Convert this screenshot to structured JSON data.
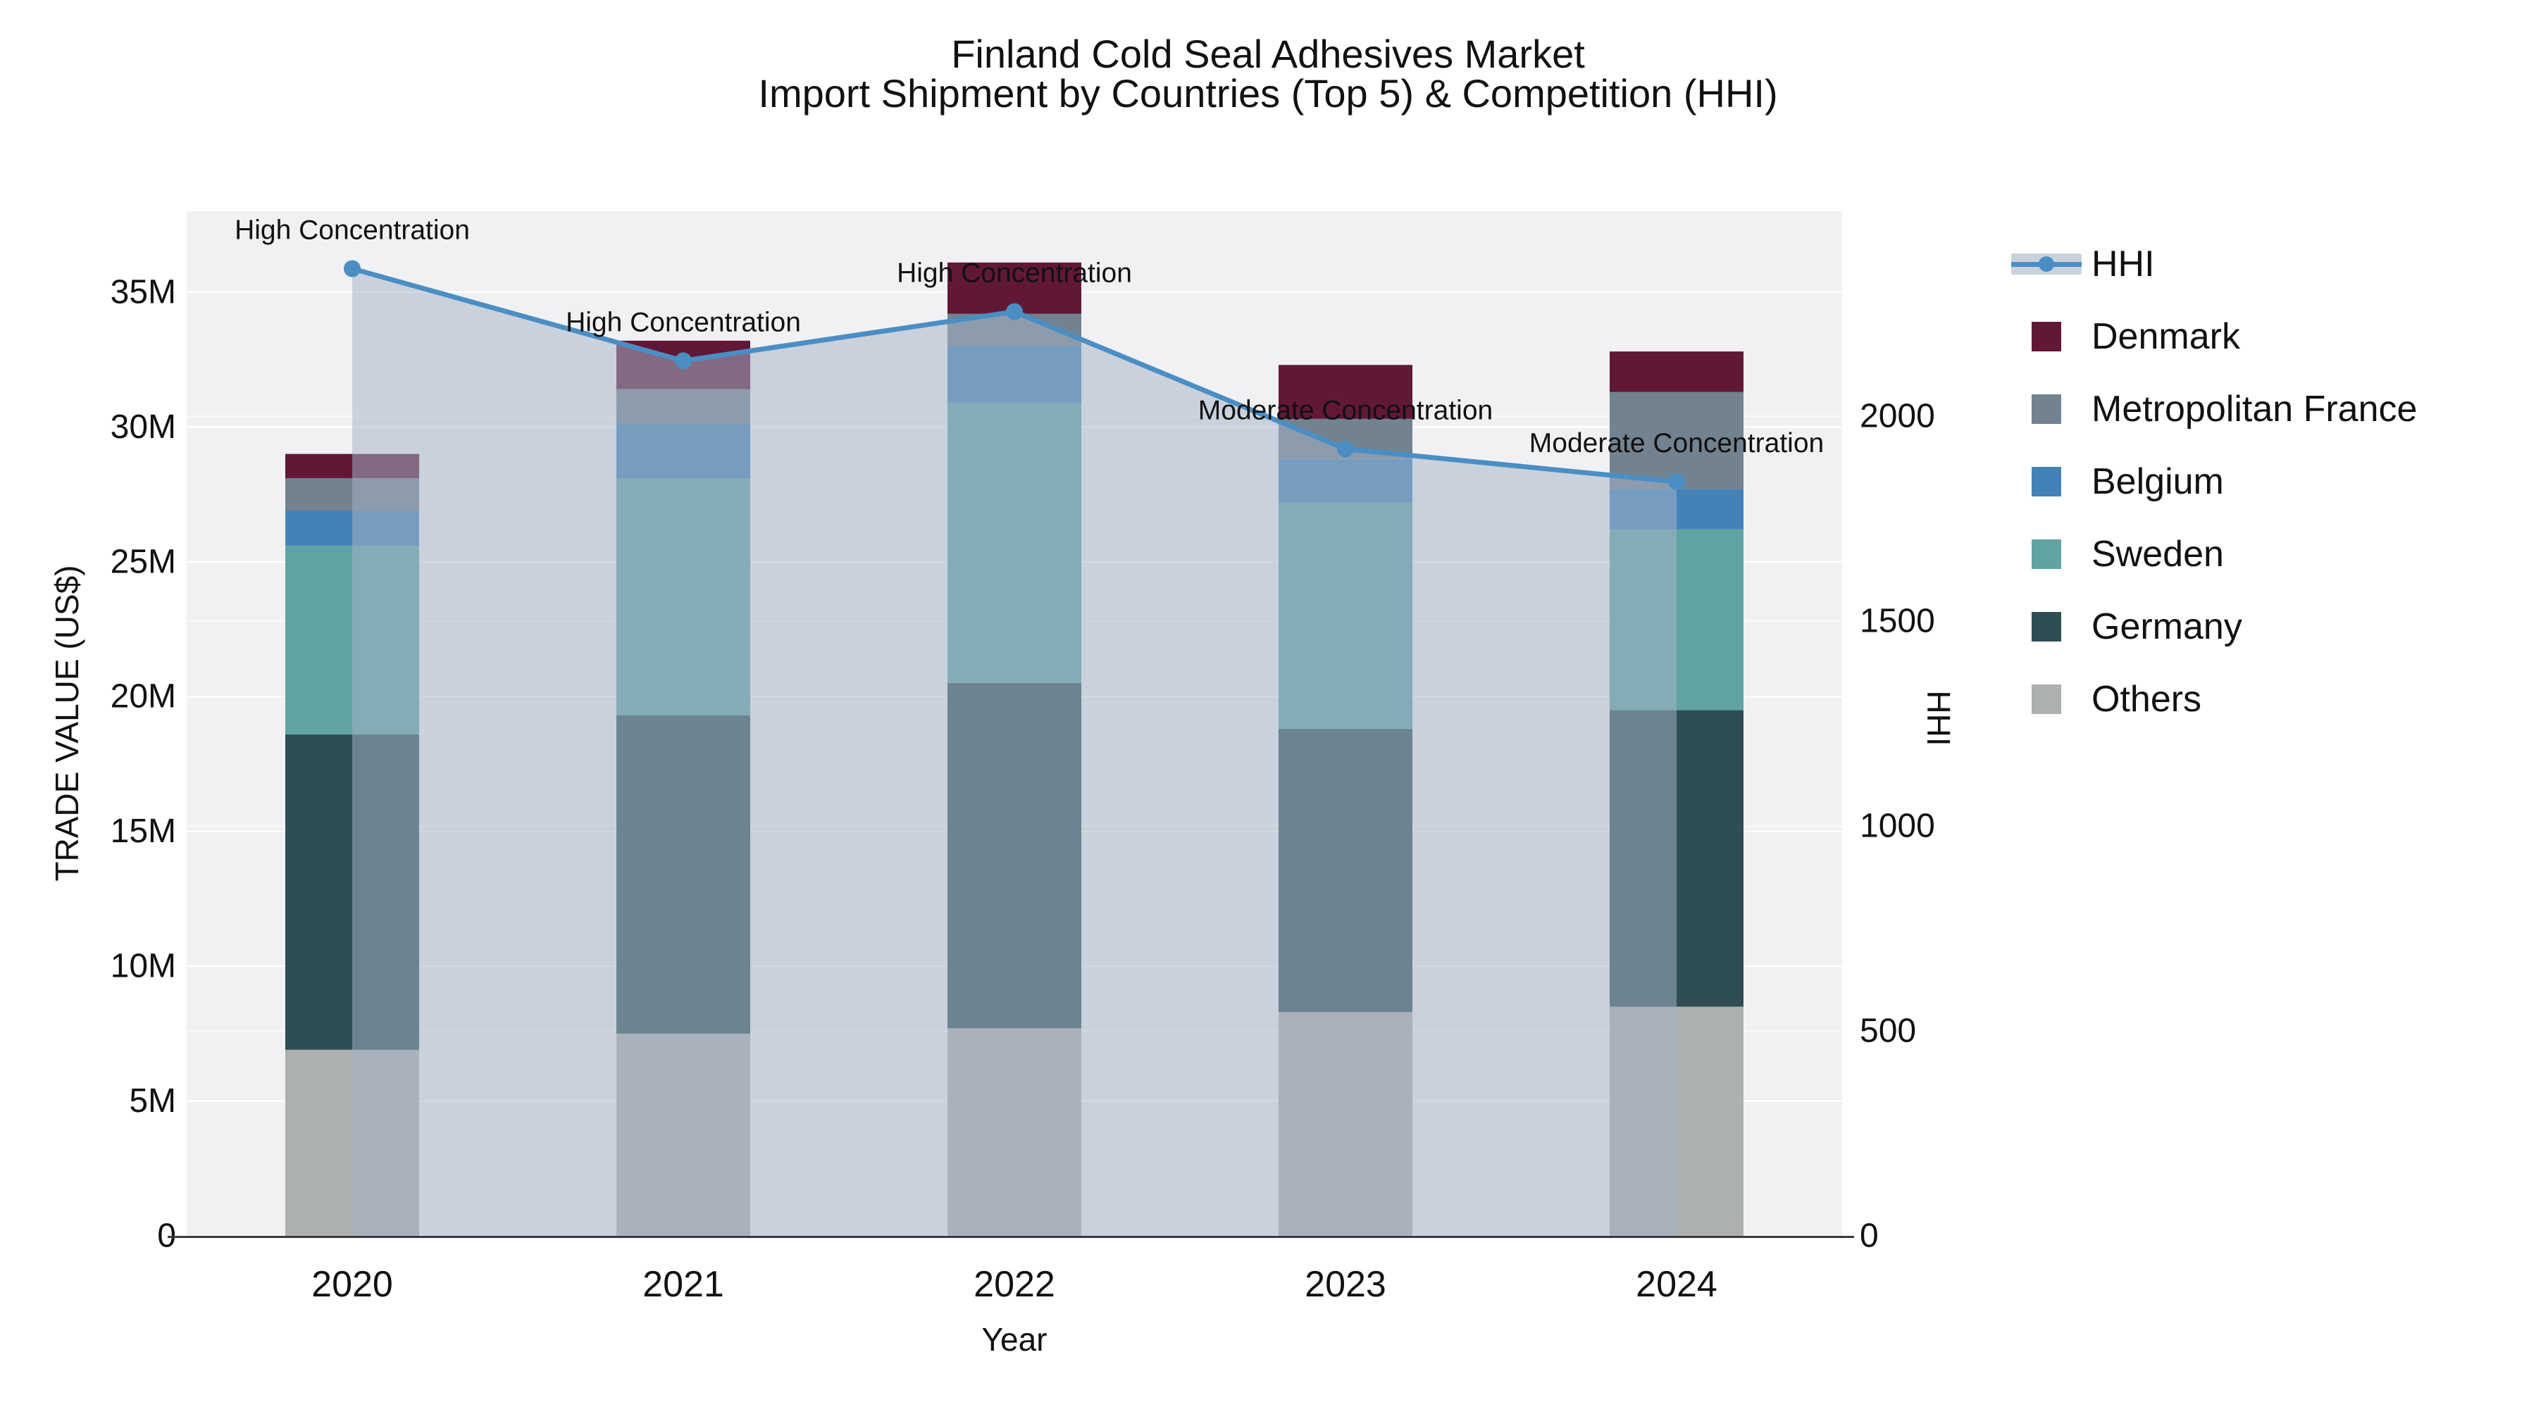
{
  "chart": {
    "title": "Finland Cold Seal Adhesives Market",
    "subtitle": "Import Shipment by Countries (Top 5) & Competition (HHI)",
    "axes": {
      "left": {
        "title": "TRADE VALUE (US$)",
        "tick_labels": [
          "0",
          "5M",
          "10M",
          "15M",
          "20M",
          "25M",
          "30M",
          "35M"
        ],
        "tick_values_musd": [
          0,
          5,
          10,
          15,
          20,
          25,
          30,
          35
        ],
        "max_musd": 38
      },
      "right": {
        "title": "HHI",
        "tick_labels": [
          "0",
          "500",
          "1000",
          "1500",
          "2000"
        ],
        "tick_values": [
          0,
          500,
          1000,
          1500,
          2000
        ],
        "max": 2500
      },
      "x": {
        "title": "Year"
      }
    }
  },
  "chart_data": {
    "type": "bar",
    "subtype": "stacked-bars-with-line-overlay",
    "categories": [
      "2020",
      "2021",
      "2022",
      "2023",
      "2024"
    ],
    "values_unit": "million US$",
    "stacking_order": "bottom to top as listed",
    "series": [
      {
        "name": "Others",
        "color": "#adb0b0",
        "values": [
          6.9,
          7.5,
          7.7,
          8.3,
          8.5
        ]
      },
      {
        "name": "Germany",
        "color": "#2f4e54",
        "values": [
          11.7,
          11.8,
          12.8,
          10.5,
          11.0
        ]
      },
      {
        "name": "Sweden",
        "color": "#61a3a3",
        "values": [
          7.0,
          8.8,
          10.4,
          8.4,
          6.7
        ]
      },
      {
        "name": "Belgium",
        "color": "#4382b8",
        "values": [
          1.3,
          2.0,
          2.1,
          1.6,
          1.5
        ]
      },
      {
        "name": "Metropolitan France",
        "color": "#73828f",
        "values": [
          1.2,
          1.3,
          1.2,
          1.5,
          3.6
        ]
      },
      {
        "name": "Denmark",
        "color": "#611837",
        "values": [
          0.9,
          1.8,
          1.9,
          2.0,
          1.5
        ]
      }
    ],
    "totals_musd": [
      29.0,
      33.2,
      36.1,
      32.3,
      32.8
    ],
    "line": {
      "name": "HHI",
      "color": "#4a8ec4",
      "area_fill": "rgba(164,180,199,0.52)",
      "values": [
        2360,
        2135,
        2255,
        1920,
        1840
      ]
    },
    "annotations": [
      {
        "category": "2020",
        "text": "High Concentration"
      },
      {
        "category": "2021",
        "text": "High Concentration"
      },
      {
        "category": "2022",
        "text": "High Concentration"
      },
      {
        "category": "2023",
        "text": "Moderate Concentration"
      },
      {
        "category": "2024",
        "text": "Moderate Concentration"
      }
    ],
    "legend_position": "right",
    "grid": true
  },
  "legend": {
    "items": [
      {
        "label": "HHI",
        "swatch": "line-with-dot-on-band"
      },
      {
        "label": "Denmark",
        "swatch": "square",
        "color": "#611837"
      },
      {
        "label": "Metropolitan France",
        "swatch": "square",
        "color": "#73828f"
      },
      {
        "label": "Belgium",
        "swatch": "square",
        "color": "#4382b8"
      },
      {
        "label": "Sweden",
        "swatch": "square",
        "color": "#61a3a3"
      },
      {
        "label": "Germany",
        "swatch": "square",
        "color": "#2f4e54"
      },
      {
        "label": "Others",
        "swatch": "square",
        "color": "#adb0b0"
      }
    ]
  },
  "style_colors": {
    "panel_background": "#f1f1f3",
    "gridline": "#ffffff",
    "axis_line": "#3a3a3a",
    "text": "#111111"
  }
}
